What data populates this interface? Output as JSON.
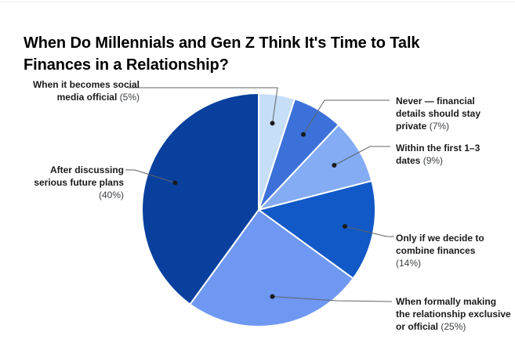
{
  "title": "When Do Millennials and Gen Z Think It's Time to Talk Finances in a Relationship?",
  "chart_data": {
    "type": "pie",
    "title": "When Do Millennials and Gen Z Think It's Time to Talk Finances in a Relationship?",
    "unit": "percent",
    "total": 100,
    "start_angle_deg": 0,
    "direction": "clockwise",
    "label_style": "outside labels with leader lines and anchor dots",
    "legend_position": "none",
    "background_color": "#ffffff",
    "leader_line_color": "#5f6368",
    "dot_color": "#1a1a1a",
    "slice_border_color": "#ffffff",
    "slices": [
      {
        "label": "When it becomes social media official",
        "pct": "(5%)",
        "value": 5,
        "color": "#c6def8"
      },
      {
        "label": "Never — financial details should stay private",
        "pct": "(7%)",
        "value": 7,
        "color": "#3c71d9"
      },
      {
        "label": "Within the first 1–3 dates",
        "pct": "(9%)",
        "value": 9,
        "color": "#84acf5"
      },
      {
        "label": "Only if we decide to combine finances",
        "pct": "(14%)",
        "value": 14,
        "color": "#1159c6"
      },
      {
        "label": "When formally making the relationship exclusive or official",
        "pct": "(25%)",
        "value": 25,
        "color": "#6e98f1"
      },
      {
        "label": "After discussing serious future plans",
        "pct": "(40%)",
        "value": 40,
        "color": "#09409e"
      }
    ]
  }
}
